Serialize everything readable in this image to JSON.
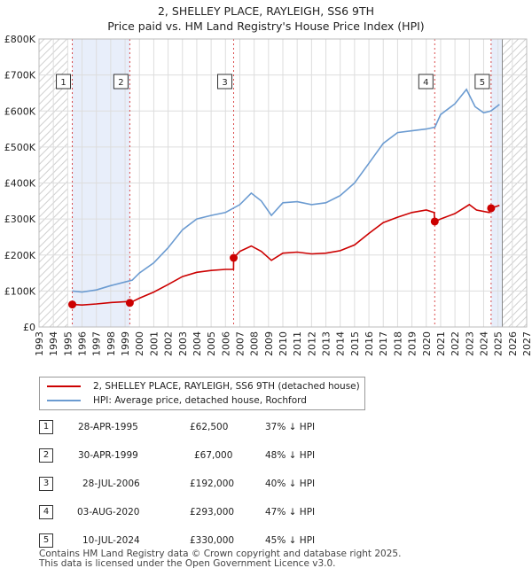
{
  "title": "2, SHELLEY PLACE, RAYLEIGH, SS6 9TH",
  "subtitle": "Price paid vs. HM Land Registry's House Price Index (HPI)",
  "legend": [
    {
      "label": "2, SHELLEY PLACE, RAYLEIGH, SS6 9TH (detached house)",
      "color": "#cc0000"
    },
    {
      "label": "HPI: Average price, detached house, Rochford",
      "color": "#6b9bd1"
    }
  ],
  "sales": [
    {
      "num": "1",
      "date": "28-APR-1995",
      "price": "£62,500",
      "hpi": "37% ↓ HPI"
    },
    {
      "num": "2",
      "date": "30-APR-1999",
      "price": "£67,000",
      "hpi": "48% ↓ HPI"
    },
    {
      "num": "3",
      "date": "28-JUL-2006",
      "price": "£192,000",
      "hpi": "40% ↓ HPI"
    },
    {
      "num": "4",
      "date": "03-AUG-2020",
      "price": "£293,000",
      "hpi": "47% ↓ HPI"
    },
    {
      "num": "5",
      "date": "10-JUL-2024",
      "price": "£330,000",
      "hpi": "45% ↓ HPI"
    }
  ],
  "footer": {
    "line1": "Contains HM Land Registry data © Crown copyright and database right 2025.",
    "line2": "This data is licensed under the Open Government Licence v3.0."
  },
  "chart_data": {
    "type": "line",
    "xlim": [
      1993,
      2027
    ],
    "ylim": [
      0,
      800000
    ],
    "x_ticks": [
      "1993",
      "1994",
      "1995",
      "1996",
      "1997",
      "1998",
      "1999",
      "2000",
      "2001",
      "2002",
      "2003",
      "2004",
      "2005",
      "2006",
      "2007",
      "2008",
      "2009",
      "2010",
      "2011",
      "2012",
      "2013",
      "2014",
      "2015",
      "2016",
      "2017",
      "2018",
      "2019",
      "2020",
      "2021",
      "2022",
      "2023",
      "2024",
      "2025",
      "2026",
      "2027"
    ],
    "y_ticks": [
      {
        "value": 0,
        "label": "£0"
      },
      {
        "value": 100000,
        "label": "£100K"
      },
      {
        "value": 200000,
        "label": "£200K"
      },
      {
        "value": 300000,
        "label": "£300K"
      },
      {
        "value": 400000,
        "label": "£400K"
      },
      {
        "value": 500000,
        "label": "£500K"
      },
      {
        "value": 600000,
        "label": "£600K"
      },
      {
        "value": 700000,
        "label": "£700K"
      },
      {
        "value": 800000,
        "label": "£800K"
      }
    ],
    "grid": true,
    "shaded_ranges": [
      [
        1995.32,
        1999.33
      ],
      [
        2024.52,
        2025.3
      ]
    ],
    "hatched_ranges": [
      [
        1993,
        1995.0
      ],
      [
        2025.3,
        2027
      ]
    ],
    "series": [
      {
        "name": "2, SHELLEY PLACE, RAYLEIGH, SS6 9TH (detached house)",
        "color": "#cc0000",
        "points": [
          [
            1995.32,
            62500
          ],
          [
            1996,
            61000
          ],
          [
            1997,
            64000
          ],
          [
            1998,
            68000
          ],
          [
            1999.3,
            71000
          ],
          [
            1999.33,
            67000
          ],
          [
            2000,
            80000
          ],
          [
            2001,
            97000
          ],
          [
            2002,
            118000
          ],
          [
            2003,
            140000
          ],
          [
            2004,
            152000
          ],
          [
            2005,
            157000
          ],
          [
            2006,
            160000
          ],
          [
            2006.56,
            160000
          ],
          [
            2006.57,
            192000
          ],
          [
            2007,
            210000
          ],
          [
            2007.8,
            225000
          ],
          [
            2008.5,
            210000
          ],
          [
            2009.2,
            185000
          ],
          [
            2010,
            205000
          ],
          [
            2011,
            208000
          ],
          [
            2012,
            203000
          ],
          [
            2013,
            205000
          ],
          [
            2014,
            212000
          ],
          [
            2015,
            228000
          ],
          [
            2016,
            260000
          ],
          [
            2017,
            290000
          ],
          [
            2018,
            305000
          ],
          [
            2019,
            318000
          ],
          [
            2020,
            325000
          ],
          [
            2020.55,
            318000
          ],
          [
            2020.59,
            293000
          ],
          [
            2021,
            300000
          ],
          [
            2022,
            315000
          ],
          [
            2023,
            340000
          ],
          [
            2023.5,
            325000
          ],
          [
            2024.4,
            318000
          ],
          [
            2024.52,
            330000
          ],
          [
            2025.1,
            338000
          ]
        ]
      },
      {
        "name": "HPI: Average price, detached house, Rochford",
        "color": "#6b9bd1",
        "points": [
          [
            1995.32,
            100000
          ],
          [
            1996,
            97000
          ],
          [
            1997,
            103000
          ],
          [
            1998,
            115000
          ],
          [
            1999,
            125000
          ],
          [
            1999.5,
            130000
          ],
          [
            2000,
            150000
          ],
          [
            2001,
            178000
          ],
          [
            2002,
            220000
          ],
          [
            2003,
            270000
          ],
          [
            2004,
            300000
          ],
          [
            2005,
            310000
          ],
          [
            2006,
            318000
          ],
          [
            2007,
            340000
          ],
          [
            2007.8,
            372000
          ],
          [
            2008.5,
            350000
          ],
          [
            2009.2,
            310000
          ],
          [
            2010,
            345000
          ],
          [
            2011,
            348000
          ],
          [
            2012,
            340000
          ],
          [
            2013,
            345000
          ],
          [
            2014,
            365000
          ],
          [
            2015,
            400000
          ],
          [
            2016,
            455000
          ],
          [
            2017,
            510000
          ],
          [
            2018,
            540000
          ],
          [
            2019,
            545000
          ],
          [
            2020,
            550000
          ],
          [
            2020.6,
            555000
          ],
          [
            2021,
            590000
          ],
          [
            2022,
            620000
          ],
          [
            2022.8,
            660000
          ],
          [
            2023.4,
            612000
          ],
          [
            2024,
            595000
          ],
          [
            2024.5,
            600000
          ],
          [
            2025.1,
            618000
          ]
        ]
      }
    ],
    "sales_points": [
      {
        "label": "1",
        "x": 1995.32,
        "y": 62500
      },
      {
        "label": "2",
        "x": 1999.33,
        "y": 67000
      },
      {
        "label": "3",
        "x": 2006.57,
        "y": 192000
      },
      {
        "label": "4",
        "x": 2020.59,
        "y": 293000
      },
      {
        "label": "5",
        "x": 2024.52,
        "y": 330000
      }
    ]
  }
}
